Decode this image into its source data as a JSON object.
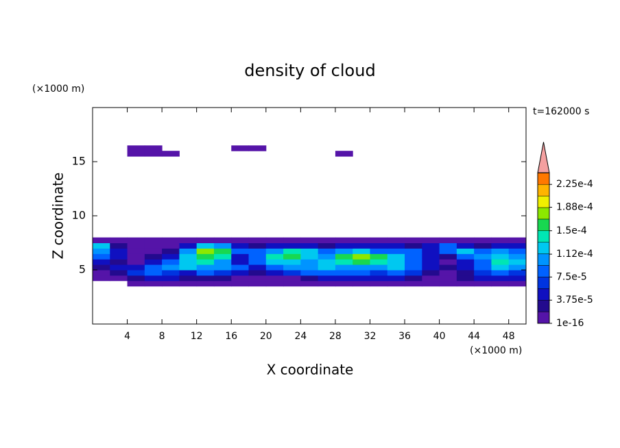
{
  "chart_data": {
    "type": "contour",
    "title": "density of cloud",
    "x_label": "X coordinate",
    "y_label": "Z coordinate",
    "x_unit_label": "(×1000 m)",
    "y_unit_label": "(×1000 m)",
    "annotation": "t=162000 s",
    "xlim": [
      0,
      50
    ],
    "ylim": [
      0,
      20
    ],
    "xticks": [
      4,
      8,
      12,
      16,
      20,
      24,
      28,
      32,
      36,
      40,
      44,
      48
    ],
    "yticks": [
      5,
      10,
      15
    ],
    "x_bins": [
      0,
      2,
      4,
      6,
      8,
      10,
      12,
      14,
      16,
      18,
      20,
      22,
      24,
      26,
      28,
      30,
      32,
      34,
      36,
      38,
      40,
      42,
      44,
      46,
      48,
      50
    ],
    "z_bins": [
      3.5,
      4,
      4.5,
      5,
      5.5,
      6,
      6.5,
      7,
      7.5,
      8,
      15.5,
      16,
      16.5
    ],
    "z": [
      [
        null,
        null,
        1e-05,
        1e-05,
        1e-05,
        1e-05,
        1e-05,
        1e-05,
        1e-05,
        1e-05,
        1e-05,
        1e-05,
        1e-05,
        1e-05,
        1e-05,
        1e-05,
        1e-05,
        1e-05,
        1e-05,
        1e-05,
        1e-05,
        1e-05,
        1e-05,
        1e-05,
        1e-05
      ],
      [
        1e-05,
        1e-05,
        2.5e-05,
        4.5e-05,
        4.5e-05,
        2.5e-05,
        2.5e-05,
        2.5e-05,
        1e-05,
        1e-05,
        1e-05,
        1e-05,
        2.5e-05,
        4.5e-05,
        4.5e-05,
        4.5e-05,
        4.5e-05,
        4.5e-05,
        2.5e-05,
        1e-05,
        1e-05,
        2.5e-05,
        4.5e-05,
        4.5e-05,
        4.5e-05
      ],
      [
        1e-05,
        2.5e-05,
        6.5e-05,
        8.5e-05,
        6.5e-05,
        4.5e-05,
        8.5e-05,
        6.5e-05,
        4.5e-05,
        2.5e-05,
        4.5e-05,
        6.5e-05,
        8.5e-05,
        8.5e-05,
        8.5e-05,
        8.5e-05,
        6.5e-05,
        8.5e-05,
        6.5e-05,
        2.5e-05,
        1e-05,
        2.5e-05,
        6.5e-05,
        8.5e-05,
        6.5e-05
      ],
      [
        2.5e-05,
        4.5e-05,
        4.5e-05,
        8.5e-05,
        0.000105,
        0.00012,
        0.000105,
        0.000105,
        8.5e-05,
        4.5e-05,
        8.5e-05,
        0.000105,
        0.000105,
        0.00012,
        0.000105,
        0.000105,
        0.000105,
        0.00012,
        8.5e-05,
        4.5e-05,
        2.5e-05,
        4.5e-05,
        8.5e-05,
        0.00012,
        0.000105
      ],
      [
        4.5e-05,
        2.5e-05,
        1e-05,
        4.5e-05,
        8.5e-05,
        0.00012,
        0.00014,
        0.000105,
        4.5e-05,
        8.5e-05,
        0.00012,
        0.00012,
        0.000105,
        0.00012,
        0.00014,
        0.00016,
        0.00014,
        0.00012,
        8.5e-05,
        4.5e-05,
        1e-05,
        4.5e-05,
        8.5e-05,
        0.00014,
        0.00012
      ],
      [
        8.5e-05,
        4.5e-05,
        1e-05,
        2.5e-05,
        4.5e-05,
        0.00012,
        0.00016,
        0.00014,
        4.5e-05,
        8.5e-05,
        0.00014,
        0.00016,
        0.00012,
        0.000105,
        0.00016,
        0.000175,
        0.00016,
        0.00012,
        8.5e-05,
        4.5e-05,
        2.5e-05,
        8.5e-05,
        0.000105,
        0.00012,
        0.000105
      ],
      [
        0.000105,
        4.5e-05,
        1e-05,
        1e-05,
        2.5e-05,
        0.000105,
        0.000175,
        0.00016,
        8.5e-05,
        8.5e-05,
        0.000105,
        0.00014,
        0.00012,
        8.5e-05,
        0.000105,
        0.00012,
        8.5e-05,
        8.5e-05,
        8.5e-05,
        4.5e-05,
        8.5e-05,
        0.00012,
        8.5e-05,
        0.000105,
        8.5e-05
      ],
      [
        0.00012,
        2.5e-05,
        1e-05,
        1e-05,
        1e-05,
        4.5e-05,
        0.00012,
        0.000105,
        4.5e-05,
        2.5e-05,
        4.5e-05,
        4.5e-05,
        4.5e-05,
        2.5e-05,
        4.5e-05,
        4.5e-05,
        4.5e-05,
        4.5e-05,
        2.5e-05,
        4.5e-05,
        8.5e-05,
        4.5e-05,
        2.5e-05,
        4.5e-05,
        4.5e-05
      ],
      [
        1e-05,
        1e-05,
        1e-05,
        1e-05,
        1e-05,
        1e-05,
        1e-05,
        1e-05,
        1e-05,
        1e-05,
        1e-05,
        1e-05,
        1e-05,
        1e-05,
        1e-05,
        1e-05,
        1e-05,
        1e-05,
        1e-05,
        1e-05,
        1e-05,
        1e-05,
        1e-05,
        1e-05,
        1e-05
      ],
      [
        null,
        null,
        null,
        null,
        null,
        null,
        null,
        null,
        null,
        null,
        null,
        null,
        null,
        null,
        null,
        null,
        null,
        null,
        null,
        null,
        null,
        null,
        null,
        null,
        null
      ],
      [
        null,
        null,
        1e-05,
        1e-05,
        1e-05,
        null,
        null,
        null,
        null,
        null,
        null,
        null,
        null,
        null,
        1e-05,
        null,
        null,
        null,
        null,
        null,
        null,
        null,
        null,
        null,
        null
      ],
      [
        null,
        null,
        1e-05,
        1e-05,
        null,
        null,
        null,
        null,
        1e-05,
        1e-05,
        null,
        null,
        null,
        null,
        null,
        null,
        null,
        null,
        null,
        null,
        null,
        null,
        null,
        null,
        null
      ]
    ],
    "levels": [
      1e-16,
      1.875e-05,
      3.75e-05,
      5.625e-05,
      7.5e-05,
      9.375e-05,
      0.0001125,
      0.00013125,
      0.00015,
      0.00016875,
      0.0001875,
      0.00020625,
      0.000225,
      0.00024375
    ],
    "colors": [
      "#5514a8",
      "#230a8e",
      "#1010c0",
      "#0034e0",
      "#0062ff",
      "#0094ff",
      "#00c8f0",
      "#00e6b4",
      "#18d850",
      "#8ce800",
      "#f0f000",
      "#ffb400",
      "#ff7800"
    ],
    "extend_color": "#f4a0a0",
    "top_color": "#ff2010",
    "cticks": [
      1e-16,
      {
        "value": 3.75e-05,
        "label": "3.75e-5"
      },
      {
        "value": 7.5e-05,
        "label": "7.5e-5"
      },
      {
        "value": 0.000112,
        "label": "1.12e-4"
      },
      {
        "value": 0.00015,
        "label": "1.5e-4"
      },
      {
        "value": 0.000188,
        "label": "1.88e-4"
      },
      {
        "value": 0.000225,
        "label": "2.25e-4"
      }
    ]
  }
}
